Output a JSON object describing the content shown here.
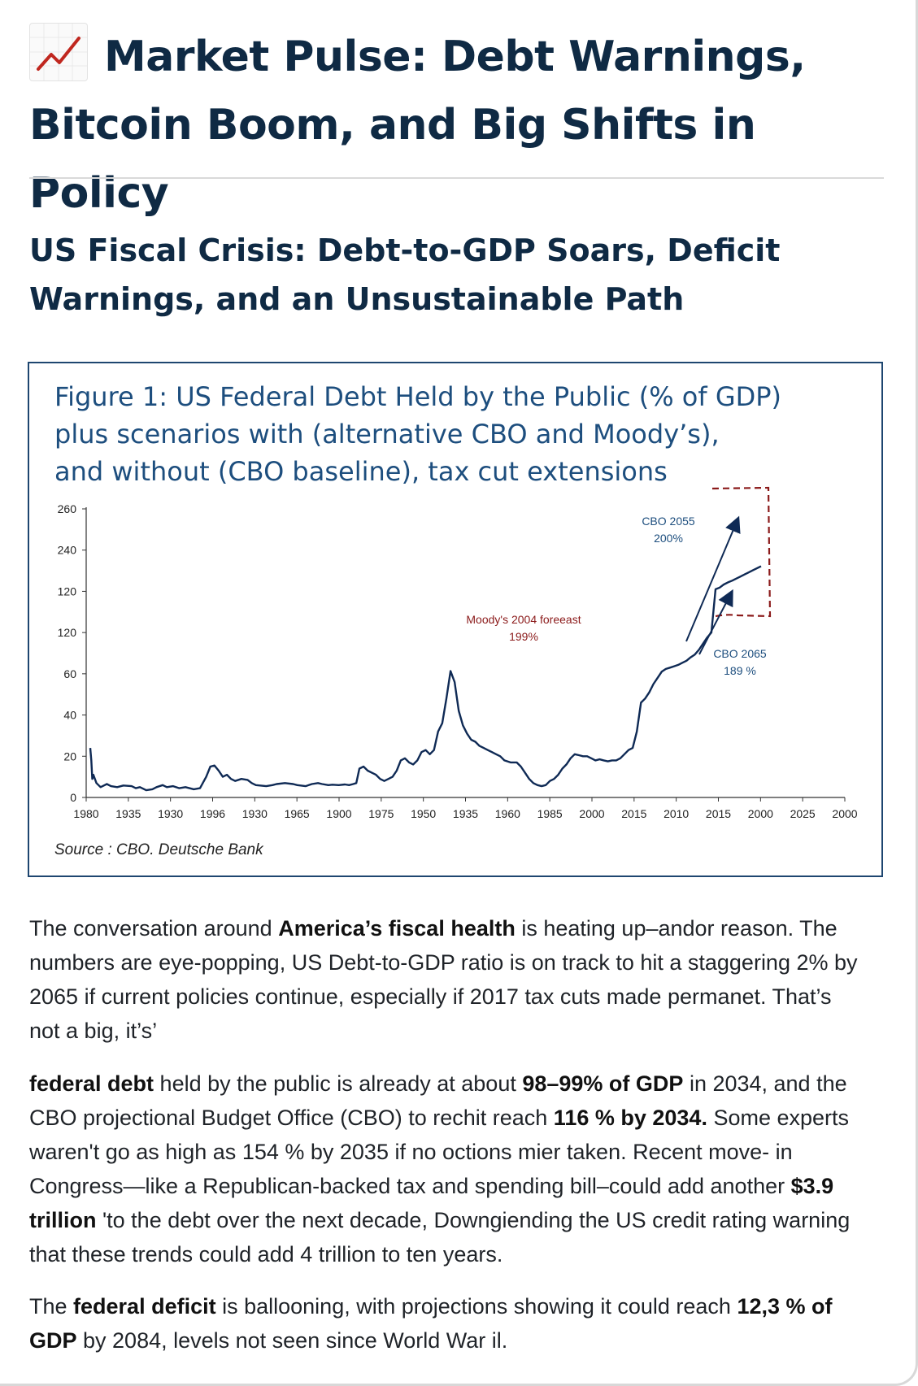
{
  "article": {
    "title": "Market Pulse: Debt Warnings, Bitcoin Boom, and Big Shifts in Policy",
    "section_heading": "US Fiscal Crisis: Debt-to-GDP Soars, Deficit Warnings, and an Unsustainable Path"
  },
  "figure": {
    "title_line1": "Figure 1: US Federal Debt Held by the Public (% of GDP)",
    "title_line2": "plus scenarios with (alternative CBO and Moody’s),",
    "title_line3": "and without (CBO baseline), tax cut extensions",
    "source": "Source : CBO. Deutsche Bank"
  },
  "chart_data": {
    "type": "line",
    "title": "Figure 1: US Federal Debt Held by the Public (% of GDP) plus scenarios with (alternative CBO and Moody’s), and without (CBO baseline), tax cut extensions",
    "xlabel": "",
    "ylabel": "",
    "y_tick_labels": [
      "0",
      "20",
      "40",
      "60",
      "120",
      "120",
      "240",
      "260"
    ],
    "x_tick_labels": [
      "1980",
      "1935",
      "1930",
      "1996",
      "1930",
      "1965",
      "1900",
      "1975",
      "1950",
      "1935",
      "1960",
      "1985",
      "2000",
      "2015",
      "2010",
      "2015",
      "2000",
      "2025",
      "2000"
    ],
    "ylim_tick_index": [
      0,
      7
    ],
    "series": [
      {
        "values": [
          [
            0.0,
            24
          ],
          [
            0.05,
            18
          ],
          [
            0.1,
            9
          ],
          [
            0.15,
            11
          ],
          [
            0.3,
            7
          ],
          [
            0.5,
            5
          ],
          [
            0.8,
            6.5
          ],
          [
            1.0,
            5.5
          ],
          [
            1.3,
            5.0
          ],
          [
            1.6,
            5.8
          ],
          [
            2.0,
            5.5
          ],
          [
            2.2,
            4.5
          ],
          [
            2.4,
            5.0
          ],
          [
            2.7,
            3.5
          ],
          [
            3.0,
            4.0
          ],
          [
            3.2,
            5.0
          ],
          [
            3.5,
            6.0
          ],
          [
            3.7,
            5.0
          ],
          [
            4.0,
            5.5
          ],
          [
            4.3,
            4.5
          ],
          [
            4.6,
            5.0
          ],
          [
            5.0,
            4.0
          ],
          [
            5.3,
            4.5
          ],
          [
            5.6,
            10
          ],
          [
            5.8,
            15
          ],
          [
            6.0,
            15.5
          ],
          [
            6.2,
            13
          ],
          [
            6.4,
            10
          ],
          [
            6.6,
            11
          ],
          [
            6.8,
            9
          ],
          [
            7.0,
            8
          ],
          [
            7.3,
            9
          ],
          [
            7.6,
            8.5
          ],
          [
            7.8,
            7
          ],
          [
            8.0,
            6
          ],
          [
            8.5,
            5.5
          ],
          [
            8.8,
            6
          ],
          [
            9.0,
            6.5
          ],
          [
            9.4,
            7
          ],
          [
            9.8,
            6.5
          ],
          [
            10.0,
            6
          ],
          [
            10.4,
            5.5
          ],
          [
            10.7,
            6.5
          ],
          [
            11.0,
            7
          ],
          [
            11.2,
            6.5
          ],
          [
            11.5,
            6.0
          ],
          [
            11.7,
            6.2
          ],
          [
            12.0,
            6.0
          ],
          [
            12.3,
            6.3
          ],
          [
            12.5,
            6.0
          ],
          [
            12.7,
            6.5
          ],
          [
            12.85,
            7
          ],
          [
            13.0,
            14
          ],
          [
            13.2,
            15
          ],
          [
            13.4,
            13
          ],
          [
            13.6,
            12
          ],
          [
            13.8,
            11
          ],
          [
            14.0,
            9
          ],
          [
            14.2,
            8
          ],
          [
            14.4,
            9
          ],
          [
            14.6,
            10
          ],
          [
            14.8,
            13
          ],
          [
            15.0,
            18
          ],
          [
            15.2,
            19
          ],
          [
            15.4,
            17
          ],
          [
            15.6,
            16
          ],
          [
            15.8,
            18
          ],
          [
            16.0,
            22
          ],
          [
            16.2,
            23
          ],
          [
            16.4,
            21
          ],
          [
            16.6,
            23
          ],
          [
            16.8,
            32
          ],
          [
            17.0,
            36
          ],
          [
            17.2,
            48
          ],
          [
            17.4,
            64
          ],
          [
            17.6,
            56
          ],
          [
            17.8,
            42
          ],
          [
            18.0,
            35
          ],
          [
            18.2,
            31
          ],
          [
            18.4,
            28
          ],
          [
            18.6,
            27
          ],
          [
            18.8,
            25
          ],
          [
            19.0,
            24
          ],
          [
            19.2,
            23
          ],
          [
            19.4,
            22
          ],
          [
            19.6,
            21
          ],
          [
            19.8,
            20
          ],
          [
            20.0,
            18
          ],
          [
            20.3,
            17
          ],
          [
            20.6,
            17
          ],
          [
            20.8,
            15
          ],
          [
            21.0,
            12
          ],
          [
            21.2,
            9
          ],
          [
            21.4,
            7
          ],
          [
            21.6,
            6
          ],
          [
            21.8,
            5.5
          ],
          [
            22.0,
            6
          ],
          [
            22.2,
            8
          ],
          [
            22.4,
            9
          ],
          [
            22.6,
            11
          ],
          [
            22.8,
            14
          ],
          [
            23.0,
            16
          ],
          [
            23.2,
            19
          ],
          [
            23.4,
            21
          ],
          [
            23.6,
            20.5
          ],
          [
            23.8,
            20
          ],
          [
            24.0,
            20
          ],
          [
            24.2,
            19
          ],
          [
            24.4,
            18
          ],
          [
            24.6,
            18.5
          ],
          [
            24.8,
            18
          ],
          [
            25.0,
            17.5
          ],
          [
            25.2,
            18
          ],
          [
            25.4,
            18
          ],
          [
            25.6,
            19
          ],
          [
            25.8,
            21
          ],
          [
            26.0,
            23
          ],
          [
            26.2,
            24
          ],
          [
            26.4,
            32
          ],
          [
            26.6,
            46
          ],
          [
            26.8,
            48
          ],
          [
            27.0,
            51
          ],
          [
            27.2,
            55
          ],
          [
            27.4,
            58
          ],
          [
            27.6,
            63
          ],
          [
            27.8,
            67
          ],
          [
            28.0,
            69
          ],
          [
            28.2,
            71
          ],
          [
            28.4,
            73
          ],
          [
            28.6,
            76
          ],
          [
            28.8,
            79
          ],
          [
            29.0,
            84
          ],
          [
            29.2,
            88
          ],
          [
            29.4,
            95
          ],
          [
            29.6,
            104
          ],
          [
            29.8,
            113
          ],
          [
            30.0,
            120
          ],
          [
            30.2,
            126
          ],
          [
            30.4,
            131
          ],
          [
            30.6,
            140
          ],
          [
            30.8,
            146
          ],
          [
            31.0,
            151
          ],
          [
            31.2,
            157
          ],
          [
            31.4,
            163
          ],
          [
            31.6,
            169
          ],
          [
            31.8,
            175
          ],
          [
            32.0,
            181
          ],
          [
            32.2,
            187
          ],
          [
            32.4,
            193
          ]
        ]
      }
    ],
    "annotations": [
      {
        "text_line1": "CBO 2055",
        "text_line2": "200%"
      },
      {
        "text_line1": "CBO 2065",
        "text_line2": "189 %"
      },
      {
        "text_line1": "Moody's 2004 foreeast",
        "text_line2": "199%"
      }
    ],
    "grid": false,
    "legend": "none",
    "colors": {
      "line": "#0f2a55",
      "moodys": "#8b1a1a",
      "cbo": "#1d4e7e",
      "dashed_box": "#8b1a1a"
    }
  },
  "paragraphs": {
    "p1": {
      "a": "The conversation around ",
      "b": "America’s fiscal health",
      "c": " is heating up–andor reason. The numbers are eye-popping, US Debt-to-GDP ratio is on track to hit a staggering 2% by 2065 if current policies continue, especially if 2017 tax cuts made permanet. That’s not a big, it’s’"
    },
    "p2": {
      "a": "federal debt",
      "b": " held by the public is already at about ",
      "c": "98–99% of GDP",
      "d": " in 2034, and the CBO projectional Budget Office (CBO) to rechit reach ",
      "e": "116 % by 2034.",
      "f": " Some experts waren't go as high as 154 % by 2035 if no octions mier taken. Recent move- in Congress—like a Republican-backed tax and spending bill–could add another ",
      "g": "$3.9 trillion",
      "h": " 'to the debt over the next decade, Downgiеnding the US credit rating warning that these trends could add 4 trillion to ten years."
    },
    "p3": {
      "a": "The ",
      "b": "federal deficit",
      "c": " is ballooning, with projections showing it could reach ",
      "d": "12,3 % of GDP",
      "e": " by 2084, levels not seen since World War il."
    }
  }
}
